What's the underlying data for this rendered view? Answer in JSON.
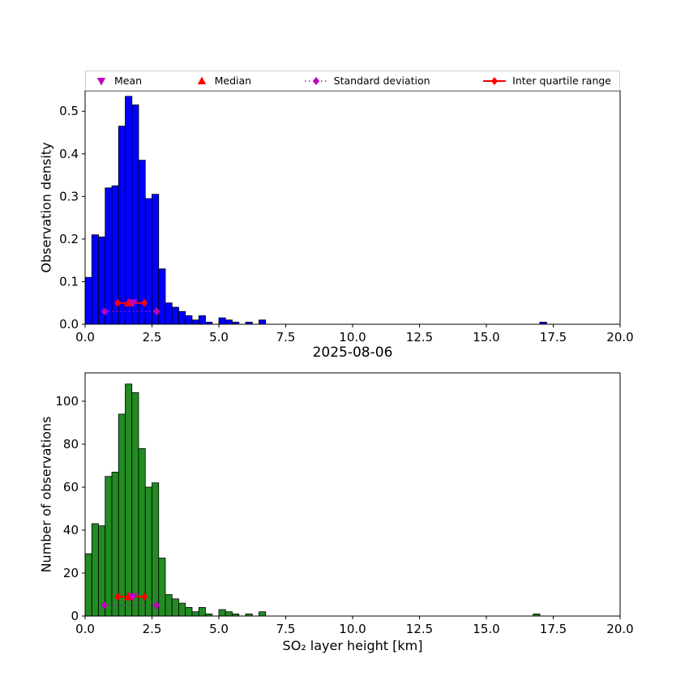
{
  "figure": {
    "title": "2025-08-06",
    "xlabel": "SO₂ layer height [km]",
    "ylabel_top": "Observation density",
    "ylabel_bottom": "Number of observations"
  },
  "colors": {
    "hist_top": "#0000ff",
    "hist_bottom": "#228b22",
    "bar_edge": "#000000",
    "mean": "#bf00bf",
    "median": "#ff0000",
    "std": "#bf00bf",
    "iqr": "#ff0000",
    "axis": "#000000",
    "legend_border": "#cccccc"
  },
  "legend": {
    "items": [
      {
        "label": "Mean",
        "marker": "triangle-down",
        "color": "#bf00bf"
      },
      {
        "label": "Median",
        "marker": "triangle-up",
        "color": "#ff0000"
      },
      {
        "label": "Standard deviation",
        "marker": "diamond-dotted-line",
        "color": "#bf00bf"
      },
      {
        "label": "Inter quartile range",
        "marker": "diamond-solid-line",
        "color": "#ff0000"
      }
    ]
  },
  "chart_data": [
    {
      "type": "bar",
      "subtype": "histogram",
      "title": "2025-08-06",
      "xlabel": "",
      "ylabel": "Observation density",
      "bin_start": 0,
      "bin_width": 0.25,
      "xlim": [
        0,
        20
      ],
      "ylim": [
        0,
        0.548
      ],
      "grid": false,
      "xticks": [
        0,
        2.5,
        5,
        7.5,
        10,
        12.5,
        15,
        17.5,
        20
      ],
      "xtick_labels": [
        "0.0",
        "2.5",
        "5.0",
        "7.5",
        "10.0",
        "12.5",
        "15.0",
        "17.5",
        "20.0"
      ],
      "yticks": [
        0,
        0.1,
        0.2,
        0.3,
        0.4,
        0.5
      ],
      "ytick_labels": [
        "0.0",
        "0.1",
        "0.2",
        "0.3",
        "0.4",
        "0.5"
      ],
      "values": [
        0.11,
        0.21,
        0.205,
        0.32,
        0.325,
        0.465,
        0.535,
        0.515,
        0.385,
        0.295,
        0.305,
        0.13,
        0.05,
        0.04,
        0.03,
        0.02,
        0.01,
        0.02,
        0.005,
        0,
        0.015,
        0.01,
        0.005,
        0,
        0.005,
        0,
        0.01,
        0,
        0,
        0,
        0,
        0,
        0,
        0,
        0,
        0,
        0,
        0,
        0,
        0,
        0,
        0,
        0,
        0,
        0,
        0,
        0,
        0,
        0,
        0,
        0,
        0,
        0,
        0,
        0,
        0,
        0,
        0,
        0,
        0,
        0,
        0,
        0,
        0,
        0,
        0,
        0,
        0,
        0.005
      ],
      "stats": {
        "mean": {
          "x": 1.78,
          "y": 0.05
        },
        "median": {
          "x": 1.62,
          "y": 0.05
        },
        "std": {
          "x1": 0.72,
          "x2": 2.67,
          "y": 0.03
        },
        "iqr": {
          "x1": 1.22,
          "x2": 2.22,
          "y": 0.05
        }
      }
    },
    {
      "type": "bar",
      "subtype": "histogram",
      "title": "",
      "xlabel": "SO₂ layer height [km]",
      "ylabel": "Number of observations",
      "bin_start": 0,
      "bin_width": 0.25,
      "xlim": [
        0,
        20
      ],
      "ylim": [
        0,
        113.2
      ],
      "grid": false,
      "xticks": [
        0,
        2.5,
        5,
        7.5,
        10,
        12.5,
        15,
        17.5,
        20
      ],
      "xtick_labels": [
        "0.0",
        "2.5",
        "5.0",
        "7.5",
        "10.0",
        "12.5",
        "15.0",
        "17.5",
        "20.0"
      ],
      "yticks": [
        0,
        20,
        40,
        60,
        80,
        100
      ],
      "ytick_labels": [
        "0",
        "20",
        "40",
        "60",
        "80",
        "100"
      ],
      "values": [
        29,
        43,
        42,
        65,
        67,
        94,
        108,
        104,
        78,
        60,
        62,
        27,
        10,
        8,
        6,
        4,
        2,
        4,
        1,
        0,
        3,
        2,
        1,
        0,
        1,
        0,
        2,
        0,
        0,
        0,
        0,
        0,
        0,
        0,
        0,
        0,
        0,
        0,
        0,
        0,
        0,
        0,
        0,
        0,
        0,
        0,
        0,
        0,
        0,
        0,
        0,
        0,
        0,
        0,
        0,
        0,
        0,
        0,
        0,
        0,
        0,
        0,
        0,
        0,
        0,
        0,
        0,
        1
      ],
      "stats": {
        "mean": {
          "x": 1.78,
          "y": 9
        },
        "median": {
          "x": 1.62,
          "y": 9
        },
        "std": {
          "x1": 0.72,
          "x2": 2.67,
          "y": 5
        },
        "iqr": {
          "x1": 1.22,
          "x2": 2.22,
          "y": 9
        }
      }
    }
  ]
}
